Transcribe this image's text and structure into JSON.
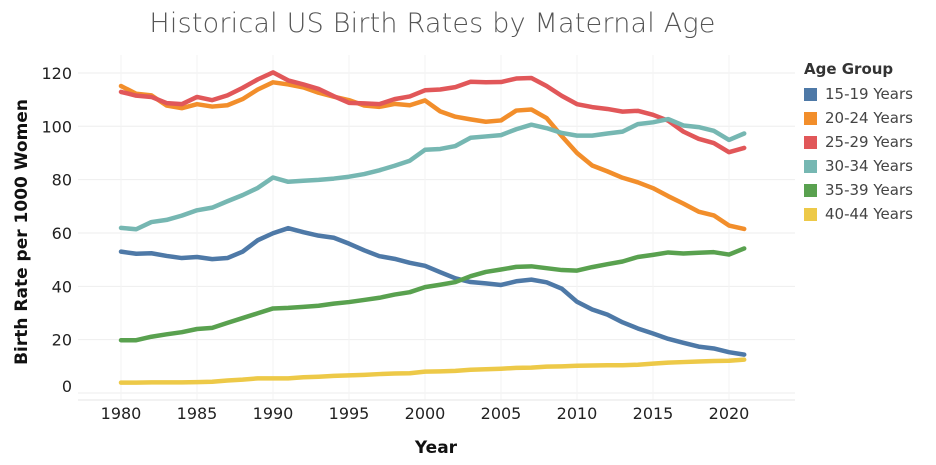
{
  "chart_data": {
    "type": "line",
    "title": "Historical US Birth Rates by Maternal Age",
    "xlabel": "Year",
    "ylabel": "Birth Rate per 1000 Women",
    "xlim": [
      1976,
      2024
    ],
    "ylim": [
      -5,
      127
    ],
    "xticks": [
      1980,
      1985,
      1990,
      1995,
      2000,
      2005,
      2010,
      2015,
      2020
    ],
    "yticks": [
      0,
      20,
      40,
      60,
      80,
      100,
      120
    ],
    "grid": true,
    "legend_title": "Age Group",
    "legend_position": "right",
    "x": [
      1980,
      1981,
      1982,
      1983,
      1984,
      1985,
      1986,
      1987,
      1988,
      1989,
      1990,
      1991,
      1992,
      1993,
      1994,
      1995,
      1996,
      1997,
      1998,
      1999,
      2000,
      2001,
      2002,
      2003,
      2004,
      2005,
      2006,
      2007,
      2008,
      2009,
      2010,
      2011,
      2012,
      2013,
      2014,
      2015,
      2016,
      2017,
      2018,
      2019,
      2020,
      2021
    ],
    "series": [
      {
        "name": "15-19 Years",
        "color": "#4e79a7",
        "values": [
          53,
          52.2,
          52.4,
          51.4,
          50.6,
          51,
          50.2,
          50.6,
          53,
          57.3,
          59.9,
          61.8,
          60.3,
          59,
          58.2,
          56,
          53.5,
          51.3,
          50.3,
          48.8,
          47.7,
          45.3,
          43,
          41.6,
          41.1,
          40.5,
          41.9,
          42.5,
          41.5,
          39.1,
          34.2,
          31.3,
          29.4,
          26.5,
          24.2,
          22.3,
          20.3,
          18.8,
          17.4,
          16.7,
          15.3,
          14.4
        ]
      },
      {
        "name": "20-24 Years",
        "color": "#f28e2b",
        "values": [
          115.1,
          112.2,
          111.6,
          107.8,
          106.8,
          108.3,
          107.4,
          107.9,
          110.2,
          113.8,
          116.5,
          115.7,
          114.6,
          112.6,
          111.1,
          109.8,
          107.8,
          107.3,
          108.4,
          107.9,
          109.7,
          105.6,
          103.6,
          102.6,
          101.7,
          102.2,
          105.9,
          106.3,
          103.1,
          96.3,
          90,
          85.3,
          83.1,
          80.7,
          79,
          76.8,
          73.8,
          71,
          68,
          66.6,
          62.8,
          61.5
        ]
      },
      {
        "name": "25-29 Years",
        "color": "#e15759",
        "values": [
          112.9,
          111.5,
          111,
          108.7,
          108.3,
          111,
          109.8,
          111.6,
          114.4,
          117.6,
          120.2,
          117.2,
          115.7,
          114,
          111.3,
          108.8,
          108.6,
          108.3,
          110.2,
          111.2,
          113.5,
          113.8,
          114.7,
          116.7,
          116.5,
          116.6,
          117.9,
          118.1,
          115.1,
          111.4,
          108.3,
          107.2,
          106.5,
          105.5,
          105.8,
          104.3,
          102.1,
          98,
          95.3,
          93.7,
          90.3,
          91.9
        ]
      },
      {
        "name": "30-34 Years",
        "color": "#76b7b2",
        "values": [
          61.9,
          61.4,
          64.1,
          64.9,
          66.5,
          68.5,
          69.5,
          71.9,
          74.2,
          76.9,
          80.8,
          79.2,
          79.6,
          79.9,
          80.4,
          81.1,
          82.1,
          83.5,
          85.2,
          87.1,
          91.2,
          91.5,
          92.6,
          95.7,
          96.2,
          96.7,
          98.9,
          100.6,
          99.3,
          97.5,
          96.5,
          96.5,
          97.3,
          98,
          100.8,
          101.5,
          102.7,
          100.3,
          99.7,
          98.3,
          94.9,
          97.3
        ]
      },
      {
        "name": "35-39 Years",
        "color": "#59a14f",
        "values": [
          19.8,
          19.8,
          21.1,
          22,
          22.8,
          24,
          24.4,
          26.3,
          28.1,
          29.9,
          31.7,
          31.9,
          32.3,
          32.7,
          33.5,
          34.1,
          34.9,
          35.7,
          36.9,
          37.8,
          39.7,
          40.6,
          41.6,
          43.8,
          45.4,
          46.3,
          47.3,
          47.5,
          46.8,
          46.1,
          45.9,
          47.2,
          48.3,
          49.3,
          51,
          51.8,
          52.7,
          52.3,
          52.6,
          52.8,
          51.9,
          54.2
        ]
      },
      {
        "name": "40-44 Years",
        "color": "#edc948",
        "values": [
          3.9,
          3.9,
          4,
          4,
          4,
          4.1,
          4.2,
          4.7,
          5,
          5.5,
          5.5,
          5.5,
          5.9,
          6.1,
          6.4,
          6.6,
          6.8,
          7.1,
          7.3,
          7.4,
          8,
          8.1,
          8.3,
          8.7,
          8.9,
          9.1,
          9.4,
          9.5,
          9.9,
          10,
          10.2,
          10.3,
          10.4,
          10.4,
          10.6,
          11,
          11.4,
          11.6,
          11.8,
          12,
          12.1,
          12.5
        ]
      }
    ]
  }
}
